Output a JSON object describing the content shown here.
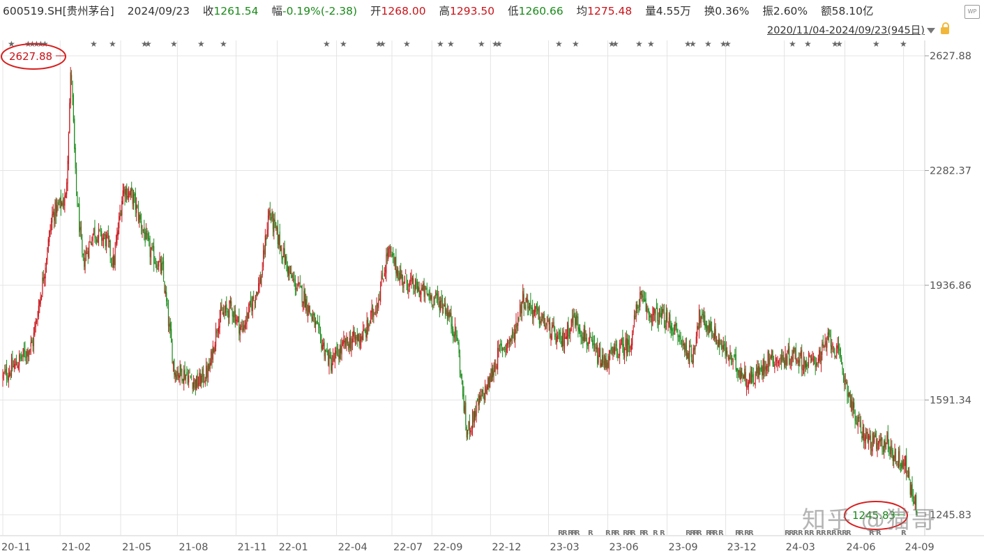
{
  "header": {
    "symbol": "600519.SH[贵州茅台]",
    "date": "2024/09/23",
    "close_label": "收",
    "close_value": "1261.54",
    "change_label": "幅",
    "change_value": "-0.19%(-2.38)",
    "open_label": "开",
    "open_value": "1268.00",
    "high_label": "高",
    "high_value": "1293.50",
    "low_label": "低",
    "low_value": "1260.66",
    "avg_label": "均",
    "avg_value": "1275.48",
    "volume_label": "量",
    "volume_value": "4.55万",
    "turnover_label": "换",
    "turnover_value": "0.36%",
    "amplitude_label": "振",
    "amplitude_value": "2.60%",
    "amount_label": "额",
    "amount_value": "58.10亿"
  },
  "range": {
    "text": "2020/11/04-2024/09/23(945日)"
  },
  "icons": {
    "range_dropdown": "chevron-down-icon",
    "lock": "lock-icon",
    "wp": "wp-icon",
    "star": "star-icon"
  },
  "wp_label": "WP",
  "colors": {
    "up": "#c8141a",
    "down": "#1a8a1a",
    "grid": "#e4e4e4",
    "axis_text": "#555555",
    "highlight": "#d81e1e"
  },
  "annotations": {
    "high_label": "2627.88",
    "low_label": "1245.83"
  },
  "watermark": "知乎 @猫哥",
  "chart_data": {
    "type": "candlestick",
    "title": "",
    "y_ticks": [
      "2627.88",
      "2282.37",
      "1936.86",
      "1591.34",
      "1245.83"
    ],
    "x_ticks": [
      "20-11",
      "21-02",
      "21-05",
      "21-08",
      "21-11",
      "22-01",
      "22-04",
      "22-07",
      "22-09",
      "22-12",
      "23-03",
      "23-06",
      "23-09",
      "23-12",
      "24-03",
      "24-06",
      "24-09"
    ],
    "ylim": [
      1245.83,
      2627.88
    ],
    "grid": true,
    "trend_points": [
      {
        "x": "2020-11-04",
        "y": 1660
      },
      {
        "x": "2020-11-25",
        "y": 1700
      },
      {
        "x": "2020-12-20",
        "y": 1760
      },
      {
        "x": "2021-01-05",
        "y": 1950
      },
      {
        "x": "2021-01-20",
        "y": 2150
      },
      {
        "x": "2021-02-10",
        "y": 2200
      },
      {
        "x": "2021-02-18",
        "y": 2600
      },
      {
        "x": "2021-02-25",
        "y": 2250
      },
      {
        "x": "2021-03-08",
        "y": 2000
      },
      {
        "x": "2021-03-25",
        "y": 2100
      },
      {
        "x": "2021-04-15",
        "y": 2070
      },
      {
        "x": "2021-04-25",
        "y": 2000
      },
      {
        "x": "2021-05-10",
        "y": 2230
      },
      {
        "x": "2021-05-25",
        "y": 2200
      },
      {
        "x": "2021-06-20",
        "y": 2040
      },
      {
        "x": "2021-07-10",
        "y": 1980
      },
      {
        "x": "2021-07-28",
        "y": 1680
      },
      {
        "x": "2021-08-15",
        "y": 1670
      },
      {
        "x": "2021-09-01",
        "y": 1640
      },
      {
        "x": "2021-09-20",
        "y": 1680
      },
      {
        "x": "2021-10-05",
        "y": 1840
      },
      {
        "x": "2021-10-25",
        "y": 1870
      },
      {
        "x": "2021-11-10",
        "y": 1800
      },
      {
        "x": "2021-12-10",
        "y": 1960
      },
      {
        "x": "2021-12-22",
        "y": 2160
      },
      {
        "x": "2022-01-05",
        "y": 2080
      },
      {
        "x": "2022-01-25",
        "y": 1960
      },
      {
        "x": "2022-02-15",
        "y": 1900
      },
      {
        "x": "2022-03-15",
        "y": 1760
      },
      {
        "x": "2022-03-28",
        "y": 1700
      },
      {
        "x": "2022-04-20",
        "y": 1760
      },
      {
        "x": "2022-05-20",
        "y": 1790
      },
      {
        "x": "2022-06-10",
        "y": 1900
      },
      {
        "x": "2022-06-25",
        "y": 2040
      },
      {
        "x": "2022-07-15",
        "y": 1960
      },
      {
        "x": "2022-08-05",
        "y": 1930
      },
      {
        "x": "2022-08-25",
        "y": 1910
      },
      {
        "x": "2022-09-20",
        "y": 1880
      },
      {
        "x": "2022-10-10",
        "y": 1780
      },
      {
        "x": "2022-10-25",
        "y": 1490
      },
      {
        "x": "2022-11-10",
        "y": 1570
      },
      {
        "x": "2022-11-28",
        "y": 1640
      },
      {
        "x": "2022-12-15",
        "y": 1740
      },
      {
        "x": "2023-01-05",
        "y": 1780
      },
      {
        "x": "2023-01-20",
        "y": 1900
      },
      {
        "x": "2023-02-05",
        "y": 1860
      },
      {
        "x": "2023-02-25",
        "y": 1820
      },
      {
        "x": "2023-03-20",
        "y": 1760
      },
      {
        "x": "2023-04-10",
        "y": 1840
      },
      {
        "x": "2023-04-30",
        "y": 1770
      },
      {
        "x": "2023-05-25",
        "y": 1700
      },
      {
        "x": "2023-06-15",
        "y": 1740
      },
      {
        "x": "2023-07-05",
        "y": 1760
      },
      {
        "x": "2023-07-20",
        "y": 1900
      },
      {
        "x": "2023-08-05",
        "y": 1850
      },
      {
        "x": "2023-08-25",
        "y": 1840
      },
      {
        "x": "2023-09-10",
        "y": 1810
      },
      {
        "x": "2023-09-25",
        "y": 1760
      },
      {
        "x": "2023-10-10",
        "y": 1720
      },
      {
        "x": "2023-10-20",
        "y": 1840
      },
      {
        "x": "2023-11-10",
        "y": 1800
      },
      {
        "x": "2023-11-25",
        "y": 1750
      },
      {
        "x": "2023-12-15",
        "y": 1700
      },
      {
        "x": "2024-01-05",
        "y": 1650
      },
      {
        "x": "2024-01-25",
        "y": 1680
      },
      {
        "x": "2024-02-05",
        "y": 1720
      },
      {
        "x": "2024-02-25",
        "y": 1710
      },
      {
        "x": "2024-03-15",
        "y": 1730
      },
      {
        "x": "2024-04-05",
        "y": 1700
      },
      {
        "x": "2024-04-25",
        "y": 1720
      },
      {
        "x": "2024-05-10",
        "y": 1780
      },
      {
        "x": "2024-05-25",
        "y": 1720
      },
      {
        "x": "2024-06-05",
        "y": 1640
      },
      {
        "x": "2024-06-20",
        "y": 1530
      },
      {
        "x": "2024-07-05",
        "y": 1480
      },
      {
        "x": "2024-07-25",
        "y": 1450
      },
      {
        "x": "2024-08-05",
        "y": 1470
      },
      {
        "x": "2024-08-20",
        "y": 1420
      },
      {
        "x": "2024-09-05",
        "y": 1400
      },
      {
        "x": "2024-09-12",
        "y": 1330
      },
      {
        "x": "2024-09-23",
        "y": 1262
      }
    ]
  }
}
